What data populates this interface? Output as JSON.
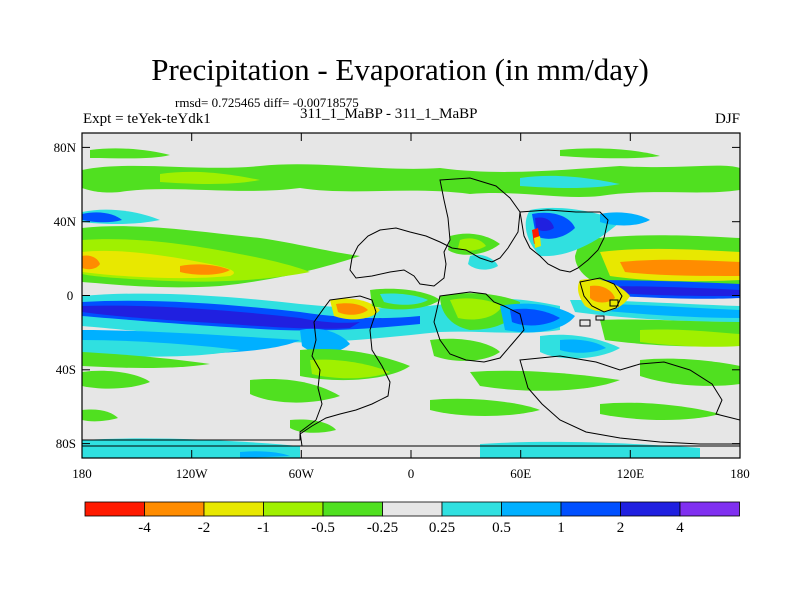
{
  "title": "Precipitation - Evaporation (in mm/day)",
  "stats": "rmsd= 0.725465  diff= -0.00718575",
  "experiment_label": "Expt = teYek-teYdk1",
  "center_label": "311_1_MaBP - 311_1_MaBP",
  "season": "DJF",
  "map": {
    "lon_ticks": [
      "180",
      "120W",
      "60W",
      "0",
      "60E",
      "120E",
      "180"
    ],
    "lat_ticks": [
      "80N",
      "40N",
      "0",
      "40S",
      "80S"
    ],
    "lon_range": [
      -180,
      180
    ],
    "lat_range": [
      -90,
      90
    ]
  },
  "colorbar": {
    "labels": [
      "-4",
      "-2",
      "-1",
      "-0.5",
      "-0.25",
      "0.25",
      "0.5",
      "1",
      "2",
      "4"
    ],
    "colors": [
      "#ff1a00",
      "#ff8c00",
      "#e8e800",
      "#a0f000",
      "#50e020",
      "#e6e6e6",
      "#30e0e0",
      "#00b0ff",
      "#0050ff",
      "#2020e0",
      "#8030f0"
    ]
  },
  "palette": {
    "background": "#e6e6e6",
    "green": "#50e020",
    "lightgreen": "#a0f000",
    "yellow": "#e8e800",
    "orange": "#ff8c00",
    "red": "#ff1a00",
    "cyan": "#30e0e0",
    "lightblue": "#00b0ff",
    "blue": "#0050ff",
    "darkblue": "#2020e0"
  }
}
